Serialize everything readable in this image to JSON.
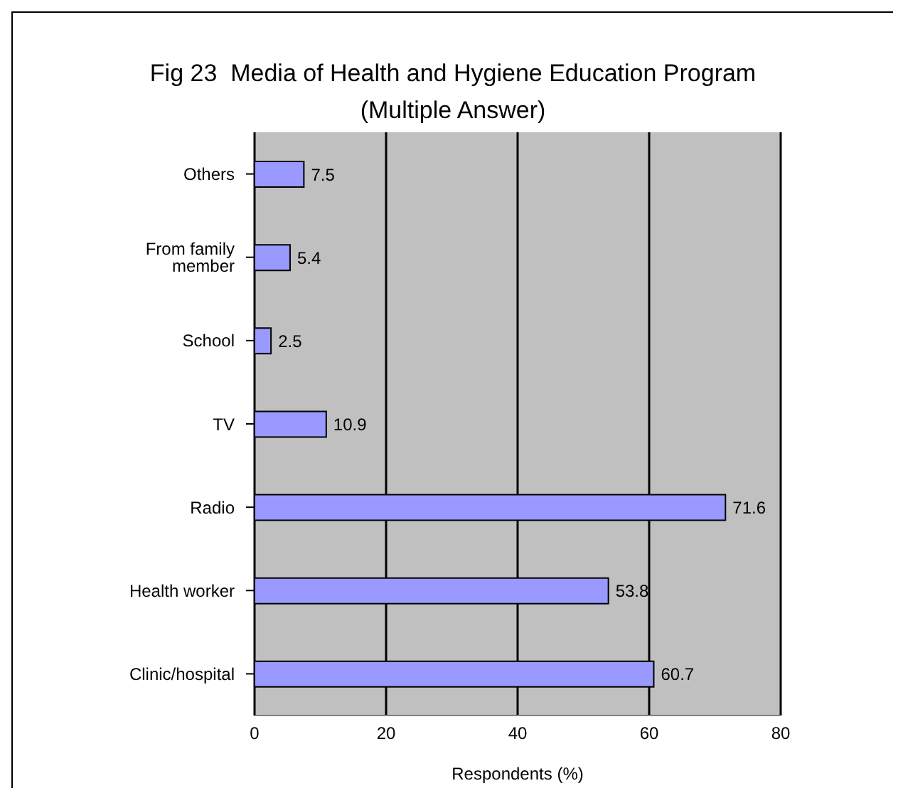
{
  "chart_data": {
    "type": "bar",
    "orientation": "horizontal",
    "title": "Fig 23  Media of Health and Hygiene Education Program (Multiple Answer)",
    "categories": [
      "Others",
      "From family member",
      "School",
      "TV",
      "Radio",
      "Health worker",
      "Clinic/hospital"
    ],
    "values": [
      7.5,
      5.4,
      2.5,
      10.9,
      71.6,
      53.8,
      60.7
    ],
    "color": "#9999ff",
    "xlabel": "Respondents (%)",
    "xlim": [
      0,
      80
    ],
    "xticks": [
      0,
      20,
      40,
      60,
      80
    ],
    "grid": "x",
    "data_labels": true,
    "legend": false
  }
}
